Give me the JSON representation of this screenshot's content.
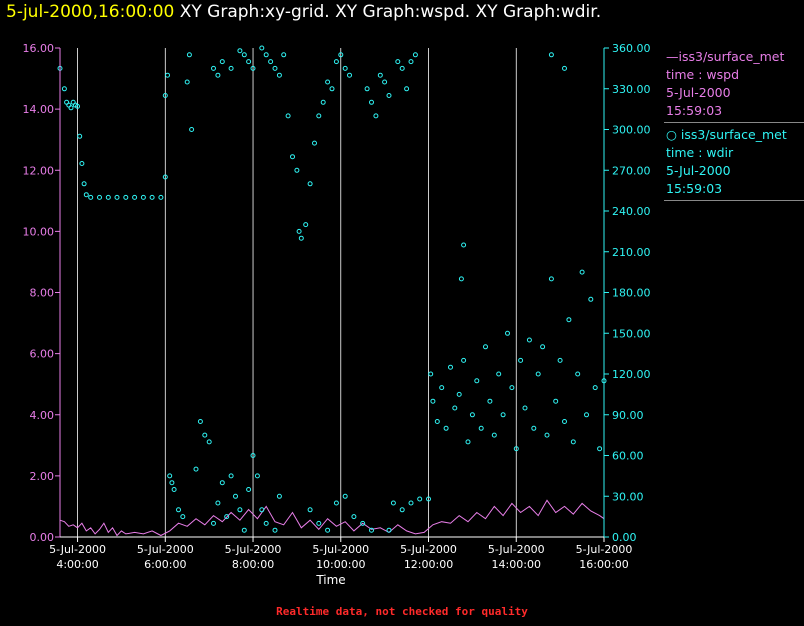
{
  "header": {
    "datetime": "5-jul-2000,16:00:00",
    "graphs": "XY Graph:xy-grid.  XY Graph:wspd.  XY Graph:wdir."
  },
  "legend": {
    "wspd": {
      "series": "iss3/surface_met",
      "field": "time : wspd",
      "date": "5-Jul-2000",
      "time": "15:59:03"
    },
    "wdir": {
      "series": "iss3/surface_met",
      "field": "time : wdir",
      "date": "5-Jul-2000",
      "time": "15:59:03"
    }
  },
  "footer": {
    "note": "Realtime data, not checked for quality"
  },
  "chart_data": {
    "type": "line",
    "xlabel": "Time",
    "x_range_hours": [
      3.6,
      16.0
    ],
    "x_ticks": [
      {
        "hour": 4,
        "date": "5-Jul-2000",
        "time": "4:00:00"
      },
      {
        "hour": 6,
        "date": "5-Jul-2000",
        "time": "6:00:00"
      },
      {
        "hour": 8,
        "date": "5-Jul-2000",
        "time": "8:00:00"
      },
      {
        "hour": 10,
        "date": "5-Jul-2000",
        "time": "10:00:00"
      },
      {
        "hour": 12,
        "date": "5-Jul-2000",
        "time": "12:00:00"
      },
      {
        "hour": 14,
        "date": "5-Jul-2000",
        "time": "14:00:00"
      },
      {
        "hour": 16,
        "date": "5-Jul-2000",
        "time": "16:00:00"
      }
    ],
    "grid": "vertical lines at x ticks",
    "y_left": {
      "series": "wspd",
      "range": [
        0,
        16
      ],
      "ticks": [
        "0.00",
        "2.00",
        "4.00",
        "6.00",
        "8.00",
        "10.00",
        "12.00",
        "14.00",
        "16.00"
      ]
    },
    "y_right": {
      "series": "wdir",
      "range": [
        0,
        360
      ],
      "ticks": [
        "0.00",
        "30.00",
        "60.00",
        "90.00",
        "120.00",
        "150.00",
        "180.00",
        "210.00",
        "240.00",
        "270.00",
        "300.00",
        "330.00",
        "360.00"
      ]
    },
    "colors": {
      "wspd": "#e87ee8",
      "wdir": "#2ff4f4",
      "axis_left": "#e87ee8",
      "axis_right": "#2ff4f4",
      "grid": "#ffffff"
    },
    "series": [
      {
        "name": "iss3/surface_met time : wspd",
        "type": "line",
        "axis": "left",
        "points": [
          [
            3.6,
            0.55
          ],
          [
            3.7,
            0.5
          ],
          [
            3.8,
            0.35
          ],
          [
            3.9,
            0.4
          ],
          [
            4.0,
            0.3
          ],
          [
            4.1,
            0.45
          ],
          [
            4.2,
            0.2
          ],
          [
            4.3,
            0.3
          ],
          [
            4.4,
            0.1
          ],
          [
            4.5,
            0.25
          ],
          [
            4.6,
            0.45
          ],
          [
            4.7,
            0.15
          ],
          [
            4.8,
            0.3
          ],
          [
            4.9,
            0.05
          ],
          [
            5.0,
            0.2
          ],
          [
            5.1,
            0.1
          ],
          [
            5.3,
            0.15
          ],
          [
            5.5,
            0.1
          ],
          [
            5.7,
            0.2
          ],
          [
            5.9,
            0.05
          ],
          [
            6.1,
            0.2
          ],
          [
            6.3,
            0.45
          ],
          [
            6.5,
            0.35
          ],
          [
            6.7,
            0.6
          ],
          [
            6.9,
            0.4
          ],
          [
            7.1,
            0.7
          ],
          [
            7.3,
            0.5
          ],
          [
            7.5,
            0.8
          ],
          [
            7.7,
            0.55
          ],
          [
            7.9,
            0.9
          ],
          [
            8.1,
            0.6
          ],
          [
            8.3,
            1.0
          ],
          [
            8.5,
            0.5
          ],
          [
            8.7,
            0.4
          ],
          [
            8.9,
            0.8
          ],
          [
            9.1,
            0.3
          ],
          [
            9.3,
            0.55
          ],
          [
            9.5,
            0.25
          ],
          [
            9.7,
            0.6
          ],
          [
            9.9,
            0.35
          ],
          [
            10.1,
            0.5
          ],
          [
            10.3,
            0.2
          ],
          [
            10.5,
            0.45
          ],
          [
            10.7,
            0.25
          ],
          [
            10.9,
            0.3
          ],
          [
            11.1,
            0.15
          ],
          [
            11.3,
            0.4
          ],
          [
            11.5,
            0.2
          ],
          [
            11.7,
            0.1
          ],
          [
            11.9,
            0.15
          ],
          [
            12.1,
            0.4
          ],
          [
            12.3,
            0.5
          ],
          [
            12.5,
            0.45
          ],
          [
            12.7,
            0.7
          ],
          [
            12.9,
            0.5
          ],
          [
            13.1,
            0.8
          ],
          [
            13.3,
            0.6
          ],
          [
            13.5,
            1.0
          ],
          [
            13.7,
            0.7
          ],
          [
            13.9,
            1.1
          ],
          [
            14.1,
            0.8
          ],
          [
            14.3,
            1.0
          ],
          [
            14.5,
            0.7
          ],
          [
            14.7,
            1.2
          ],
          [
            14.9,
            0.8
          ],
          [
            15.1,
            1.0
          ],
          [
            15.3,
            0.75
          ],
          [
            15.5,
            1.1
          ],
          [
            15.7,
            0.85
          ],
          [
            15.9,
            0.7
          ],
          [
            16.0,
            0.6
          ]
        ]
      },
      {
        "name": "iss3/surface_met time : wdir",
        "type": "scatter",
        "axis": "right",
        "points": [
          [
            3.6,
            345
          ],
          [
            3.7,
            330
          ],
          [
            3.75,
            320
          ],
          [
            3.8,
            318
          ],
          [
            3.85,
            316
          ],
          [
            3.9,
            320
          ],
          [
            3.95,
            318
          ],
          [
            4.0,
            317
          ],
          [
            4.05,
            295
          ],
          [
            4.1,
            275
          ],
          [
            4.15,
            260
          ],
          [
            4.2,
            252
          ],
          [
            4.3,
            250
          ],
          [
            4.5,
            250
          ],
          [
            4.7,
            250
          ],
          [
            4.9,
            250
          ],
          [
            5.1,
            250
          ],
          [
            5.3,
            250
          ],
          [
            5.5,
            250
          ],
          [
            5.7,
            250
          ],
          [
            5.9,
            250
          ],
          [
            6.0,
            265
          ],
          [
            6.0,
            325
          ],
          [
            6.05,
            340
          ],
          [
            6.1,
            45
          ],
          [
            6.15,
            40
          ],
          [
            6.2,
            35
          ],
          [
            6.3,
            20
          ],
          [
            6.4,
            15
          ],
          [
            6.5,
            335
          ],
          [
            6.55,
            355
          ],
          [
            6.6,
            300
          ],
          [
            6.7,
            50
          ],
          [
            6.8,
            85
          ],
          [
            6.9,
            75
          ],
          [
            7.0,
            70
          ],
          [
            7.1,
            10
          ],
          [
            7.2,
            25
          ],
          [
            7.3,
            40
          ],
          [
            7.4,
            15
          ],
          [
            7.5,
            45
          ],
          [
            7.6,
            30
          ],
          [
            7.7,
            20
          ],
          [
            7.8,
            5
          ],
          [
            7.9,
            35
          ],
          [
            8.0,
            60
          ],
          [
            8.1,
            45
          ],
          [
            8.2,
            20
          ],
          [
            8.3,
            10
          ],
          [
            8.5,
            5
          ],
          [
            8.6,
            30
          ],
          [
            7.1,
            345
          ],
          [
            7.2,
            340
          ],
          [
            7.3,
            350
          ],
          [
            7.5,
            345
          ],
          [
            7.7,
            358
          ],
          [
            7.8,
            355
          ],
          [
            7.9,
            350
          ],
          [
            8.0,
            345
          ],
          [
            8.2,
            360
          ],
          [
            8.3,
            355
          ],
          [
            8.4,
            350
          ],
          [
            8.5,
            345
          ],
          [
            8.6,
            340
          ],
          [
            8.7,
            355
          ],
          [
            8.8,
            310
          ],
          [
            8.9,
            280
          ],
          [
            9.0,
            270
          ],
          [
            9.05,
            225
          ],
          [
            9.1,
            220
          ],
          [
            9.2,
            230
          ],
          [
            9.3,
            260
          ],
          [
            9.4,
            290
          ],
          [
            9.5,
            310
          ],
          [
            9.6,
            320
          ],
          [
            9.7,
            335
          ],
          [
            9.8,
            330
          ],
          [
            9.9,
            350
          ],
          [
            10.0,
            355
          ],
          [
            10.1,
            345
          ],
          [
            10.2,
            340
          ],
          [
            9.3,
            20
          ],
          [
            9.5,
            10
          ],
          [
            9.7,
            5
          ],
          [
            9.9,
            25
          ],
          [
            10.1,
            30
          ],
          [
            10.3,
            15
          ],
          [
            10.5,
            10
          ],
          [
            10.7,
            5
          ],
          [
            11.1,
            5
          ],
          [
            10.6,
            330
          ],
          [
            10.7,
            320
          ],
          [
            10.8,
            310
          ],
          [
            10.9,
            340
          ],
          [
            11.0,
            335
          ],
          [
            11.1,
            325
          ],
          [
            11.3,
            350
          ],
          [
            11.4,
            345
          ],
          [
            11.5,
            330
          ],
          [
            11.6,
            350
          ],
          [
            11.7,
            355
          ],
          [
            11.2,
            25
          ],
          [
            11.4,
            20
          ],
          [
            11.6,
            25
          ],
          [
            11.8,
            28
          ],
          [
            12.0,
            28
          ],
          [
            12.05,
            120
          ],
          [
            12.1,
            100
          ],
          [
            12.2,
            85
          ],
          [
            12.3,
            110
          ],
          [
            12.4,
            80
          ],
          [
            12.5,
            125
          ],
          [
            12.6,
            95
          ],
          [
            12.7,
            105
          ],
          [
            12.8,
            130
          ],
          [
            12.9,
            70
          ],
          [
            13.0,
            90
          ],
          [
            13.1,
            115
          ],
          [
            13.2,
            80
          ],
          [
            13.3,
            140
          ],
          [
            13.4,
            100
          ],
          [
            13.5,
            75
          ],
          [
            13.6,
            120
          ],
          [
            13.7,
            90
          ],
          [
            13.8,
            150
          ],
          [
            13.9,
            110
          ],
          [
            14.0,
            65
          ],
          [
            14.1,
            130
          ],
          [
            14.2,
            95
          ],
          [
            14.3,
            145
          ],
          [
            14.4,
            80
          ],
          [
            14.5,
            120
          ],
          [
            14.6,
            140
          ],
          [
            14.7,
            75
          ],
          [
            14.8,
            190
          ],
          [
            14.9,
            100
          ],
          [
            15.0,
            130
          ],
          [
            15.1,
            85
          ],
          [
            15.2,
            160
          ],
          [
            15.3,
            70
          ],
          [
            15.4,
            120
          ],
          [
            15.5,
            195
          ],
          [
            15.6,
            90
          ],
          [
            15.7,
            175
          ],
          [
            15.8,
            110
          ],
          [
            15.9,
            65
          ],
          [
            16.0,
            115
          ],
          [
            12.8,
            215
          ],
          [
            12.75,
            190
          ],
          [
            14.8,
            355
          ],
          [
            15.1,
            345
          ]
        ]
      }
    ]
  }
}
